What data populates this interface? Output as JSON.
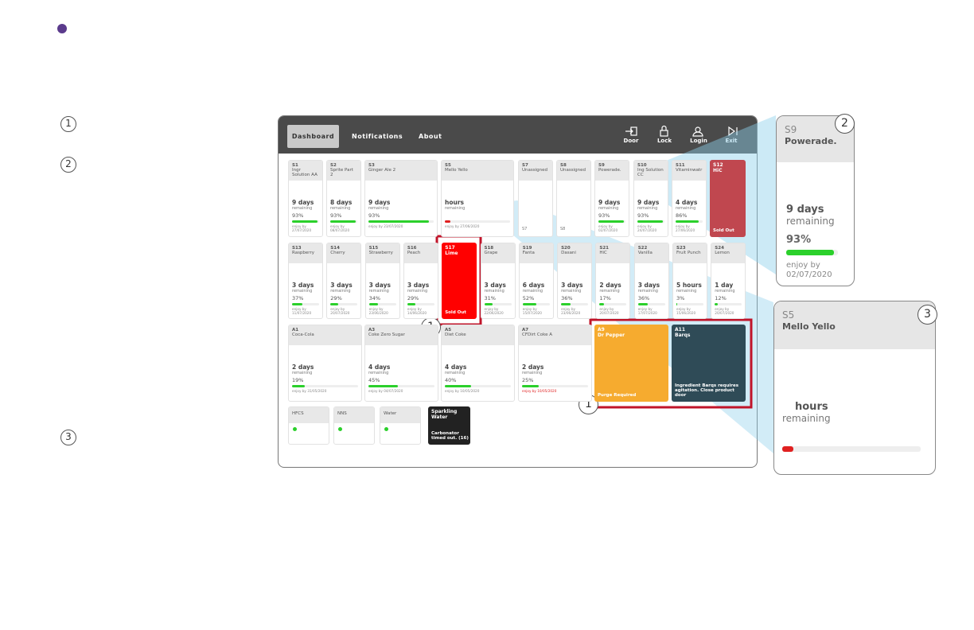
{
  "nav": {
    "tabs": [
      "Dashboard",
      "Notifications",
      "About"
    ],
    "actions": [
      "Door",
      "Lock",
      "Login",
      "Exit"
    ]
  },
  "legend_markers": [
    "1",
    "2",
    "3"
  ],
  "tiles": {
    "rows": [
      [
        {
          "id": "S1",
          "name": "Ingr Solution AA",
          "days": "9 days",
          "remaining": "remaining",
          "pct": 93,
          "pct_label": "93%",
          "enjoy": "enjoy by 27/07/2020"
        },
        {
          "id": "S2",
          "name": "Sprite Part 2",
          "days": "8 days",
          "remaining": "remaining",
          "pct": 93,
          "pct_label": "93%",
          "enjoy": "enjoy by 08/07/2020"
        },
        {
          "id": "S3",
          "name": "Ginger Ale 2",
          "days": "9 days",
          "remaining": "remaining",
          "pct": 93,
          "pct_label": "93%",
          "enjoy": "enjoy by 23/07/2020"
        },
        {
          "id": "S5",
          "name": "Mello Yello",
          "days": "hours",
          "remaining": "remaining",
          "pct": 8,
          "bar_color": "#e02020",
          "enjoy": "enjoy by 27/06/2020"
        },
        {
          "id": "S7",
          "name": "Unassigned",
          "footer": "S7"
        },
        {
          "id": "S8",
          "name": "Unassigned",
          "footer": "S8"
        },
        {
          "id": "S9",
          "name": "Powerade.",
          "days": "9 days",
          "remaining": "remaining",
          "pct": 93,
          "pct_label": "93%",
          "enjoy": "enjoy by 02/07/2020"
        },
        {
          "id": "S10",
          "name": "Ing Solution CC",
          "days": "9 days",
          "remaining": "remaining",
          "pct": 93,
          "pct_label": "93%",
          "enjoy": "enjoy by 24/07/2020"
        },
        {
          "id": "S11",
          "name": "Vitaminwatr",
          "days": "4 days",
          "remaining": "remaining",
          "pct": 86,
          "pct_label": "86%",
          "enjoy": "enjoy by 27/06/2020"
        },
        {
          "id": "S12",
          "name": "HiC",
          "message": "Sold Out",
          "color": "#c0474f"
        }
      ],
      [
        {
          "id": "S13",
          "name": "Raspberry",
          "days": "3 days",
          "remaining": "remaining",
          "pct": 37,
          "pct_label": "37%",
          "enjoy": "enjoy by 11/07/2020"
        },
        {
          "id": "S14",
          "name": "Cherry",
          "days": "3 days",
          "remaining": "remaining",
          "pct": 29,
          "pct_label": "29%",
          "enjoy": "enjoy by 20/07/2020"
        },
        {
          "id": "S15",
          "name": "Strawberry",
          "days": "3 days",
          "remaining": "remaining",
          "pct": 34,
          "pct_label": "34%",
          "enjoy": "enjoy by 23/06/2020"
        },
        {
          "id": "S16",
          "name": "Peach",
          "days": "3 days",
          "remaining": "remaining",
          "pct": 29,
          "pct_label": "29%",
          "enjoy": "enjoy by 14/06/2020"
        },
        {
          "id": "S17",
          "name": "Lime",
          "message": "Sold Out",
          "color": "#ff0000"
        },
        {
          "id": "S18",
          "name": "Grape",
          "days": "3 days",
          "remaining": "remaining",
          "pct": 31,
          "pct_label": "31%",
          "enjoy": "enjoy by 22/06/2020"
        },
        {
          "id": "S19",
          "name": "Fanta",
          "days": "6 days",
          "remaining": "remaining",
          "pct": 52,
          "pct_label": "52%",
          "enjoy": "enjoy by 15/07/2020"
        },
        {
          "id": "S20",
          "name": "Dasani",
          "days": "3 days",
          "remaining": "remaining",
          "pct": 36,
          "pct_label": "36%",
          "enjoy": "enjoy by 23/06/2020"
        },
        {
          "id": "S21",
          "name": "HiC",
          "days": "2 days",
          "remaining": "remaining",
          "pct": 17,
          "pct_label": "17%",
          "enjoy": "enjoy by 20/07/2020"
        },
        {
          "id": "S22",
          "name": "Vanilla",
          "days": "3 days",
          "remaining": "remaining",
          "pct": 36,
          "pct_label": "36%",
          "enjoy": "enjoy by 17/07/2020"
        },
        {
          "id": "S23",
          "name": "Fruit Punch",
          "days": "5 hours",
          "remaining": "remaining",
          "pct": 3,
          "pct_label": "3%",
          "enjoy": "enjoy by 15/06/2020"
        },
        {
          "id": "S24",
          "name": "Lemon",
          "days": "1 day",
          "remaining": "remaining",
          "pct": 12,
          "pct_label": "12%",
          "enjoy": "enjoy by 20/07/2020"
        }
      ],
      [
        {
          "id": "A1",
          "name": "Coca-Cola",
          "days": "2 days",
          "remaining": "remaining",
          "pct": 19,
          "pct_label": "19%",
          "enjoy": "enjoy by 31/05/2020"
        },
        {
          "id": "A3",
          "name": "Coke Zero Sugar",
          "days": "4 days",
          "remaining": "remaining",
          "pct": 45,
          "pct_label": "45%",
          "enjoy": "enjoy by 04/07/2020"
        },
        {
          "id": "A5",
          "name": "Diet Coke",
          "days": "4 days",
          "remaining": "remaining",
          "pct": 40,
          "pct_label": "40%",
          "enjoy": "enjoy by 10/05/2020"
        },
        {
          "id": "A7",
          "name": "CFDirt Coke A",
          "days": "2 days",
          "remaining": "remaining",
          "pct": 25,
          "pct_label": "25%",
          "enjoy": "enjoy by 10/05/2020",
          "enjoy_color": "#e02020"
        },
        {
          "id": "A9",
          "name": "Dr Pepper",
          "message": "Purge Required",
          "color": "#f6ab2f"
        },
        {
          "id": "A11",
          "name": "Barqs",
          "message": "Ingredient Barqs requires agitation. Close product door",
          "color": "#2f4b57"
        }
      ],
      [
        {
          "name": "HFCS"
        },
        {
          "name": "NNS"
        },
        {
          "name": "Water"
        },
        {
          "name": "Sparkling Water",
          "message": "Carbonator timed out. (16)",
          "color": "#222222"
        }
      ]
    ]
  },
  "callouts": [
    "1",
    "1"
  ],
  "zoom_cards": [
    {
      "badge": "2",
      "id": "S9",
      "name": "Powerade.",
      "days": "9 days",
      "remaining": "remaining",
      "pct": 93,
      "pct_label": "93%",
      "enjoy": "enjoy by 02/07/2020"
    },
    {
      "badge": "3",
      "id": "S5",
      "name": "Mello Yello",
      "days": "hours",
      "remaining": "remaining",
      "pct": 8,
      "bar_color": "#e02020"
    }
  ]
}
